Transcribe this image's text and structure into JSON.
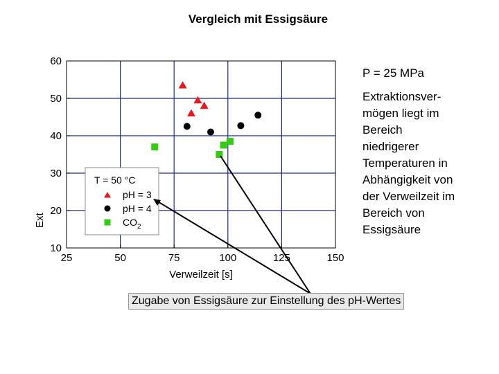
{
  "slide": {
    "title": "Vergleich mit Essigsäure",
    "pressure": "P = 25 MPa",
    "description": "Extraktionsver-\nmögen liegt im\nBereich\nniedrigerer\nTemperaturen  in\nAbhängigkeit von\nder Verweilzeit im\nBereich von\nEssigsäure",
    "callout": "Zugabe von Essigsäure zur Einstellung des pH-Wertes"
  },
  "chart_data": {
    "type": "scatter",
    "xlabel": "Verweilzeit [s]",
    "ylabel": "Ext",
    "xlim": [
      25,
      150
    ],
    "ylim": [
      10,
      60
    ],
    "xticks": [
      25,
      50,
      75,
      100,
      125,
      150
    ],
    "yticks": [
      10,
      20,
      30,
      40,
      50,
      60
    ],
    "grid": true,
    "legend": {
      "position": "bottom-left",
      "title": "T = 50 °C"
    },
    "series": [
      {
        "name": "pH = 3",
        "marker": "triangle",
        "color": "#e8191c",
        "points": [
          [
            79,
            53.5
          ],
          [
            86,
            49.5
          ],
          [
            89,
            48
          ],
          [
            83,
            46
          ]
        ]
      },
      {
        "name": "pH = 4",
        "marker": "circle",
        "color": "#000000",
        "points": [
          [
            81,
            42.5
          ],
          [
            92,
            41
          ],
          [
            106,
            42.7
          ],
          [
            114,
            45.5
          ]
        ]
      },
      {
        "name": "CO2",
        "name_main": "CO",
        "name_sub": "2",
        "marker": "square",
        "color": "#33cc11",
        "points": [
          [
            66,
            37
          ],
          [
            96,
            35
          ],
          [
            98,
            37.5
          ],
          [
            101,
            38.5
          ]
        ]
      }
    ]
  }
}
